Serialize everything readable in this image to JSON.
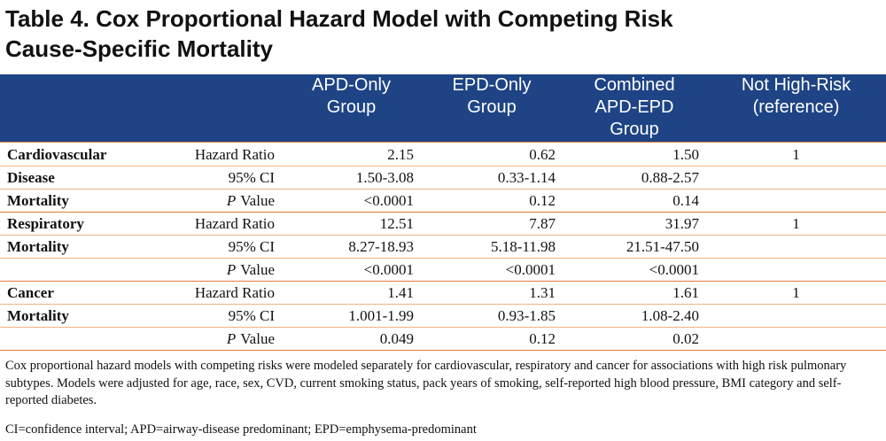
{
  "title_lines": [
    "Table 4. Cox Proportional Hazard Model with Competing Risk",
    "Cause-Specific Mortality"
  ],
  "table": {
    "header": [
      [
        "APD-Only",
        "Group"
      ],
      [
        "EPD-Only",
        "Group"
      ],
      [
        "Combined",
        "APD-EPD",
        "Group"
      ],
      [
        "Not High-Risk",
        "(reference)"
      ]
    ],
    "groups": [
      {
        "label": [
          "Cardiovascular",
          "Disease",
          "Mortality"
        ],
        "rows": [
          {
            "metric": [
              "Hazard Ratio"
            ],
            "cells": [
              "2.15",
              "0.62",
              "1.50",
              "1"
            ]
          },
          {
            "metric": [
              "95% CI"
            ],
            "cells": [
              "1.50-3.08",
              "0.33-1.14",
              "0.88-2.57",
              null
            ]
          },
          {
            "metric": [
              "P",
              "Value"
            ],
            "cells": [
              "<0.0001",
              "0.12",
              "0.14",
              null
            ]
          }
        ]
      },
      {
        "label": [
          "Respiratory",
          "Mortality"
        ],
        "rows": [
          {
            "metric": [
              "Hazard Ratio"
            ],
            "cells": [
              "12.51",
              "7.87",
              "31.97",
              "1"
            ]
          },
          {
            "metric": [
              "95% CI"
            ],
            "cells": [
              "8.27-18.93",
              "5.18-11.98",
              "21.51-47.50",
              null
            ]
          },
          {
            "metric": [
              "P",
              "Value"
            ],
            "cells": [
              "<0.0001",
              "<0.0001",
              "<0.0001",
              null
            ]
          }
        ]
      },
      {
        "label": [
          "Cancer",
          "Mortality"
        ],
        "rows": [
          {
            "metric": [
              "Hazard Ratio"
            ],
            "cells": [
              "1.41",
              "1.31",
              "1.61",
              "1"
            ]
          },
          {
            "metric": [
              "95% CI"
            ],
            "cells": [
              "1.001-1.99",
              "0.93-1.85",
              "1.08-2.40",
              null
            ]
          },
          {
            "metric": [
              "P",
              "Value"
            ],
            "cells": [
              "0.049",
              "0.12",
              "0.02",
              null
            ]
          }
        ]
      }
    ]
  },
  "footnotes": [
    "Cox proportional hazard models with competing risks were modeled separately for cardiovascular, respiratory and cancer for associations with high risk pulmonary subtypes. Models were adjusted for age, race, sex, CVD, current smoking status, pack years of smoking, self-reported high blood pressure, BMI category and self-reported diabetes.",
    "CI=confidence interval; APD=airway-disease predominant; EPD=emphysema-predominant"
  ]
}
